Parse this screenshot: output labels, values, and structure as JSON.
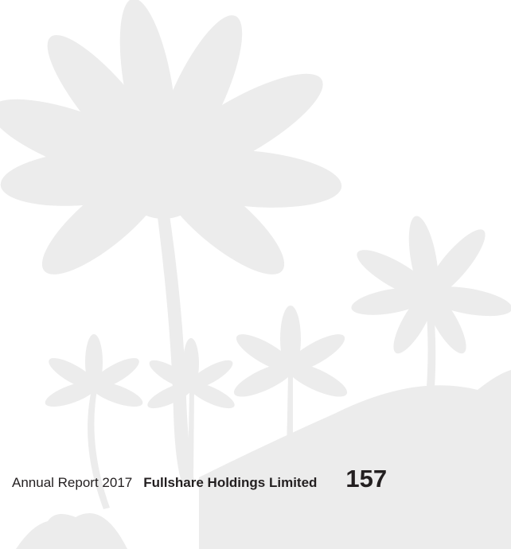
{
  "footer": {
    "report_title": "Annual Report 2017",
    "company": "Fullshare Holdings Limited",
    "page_number": "157"
  }
}
